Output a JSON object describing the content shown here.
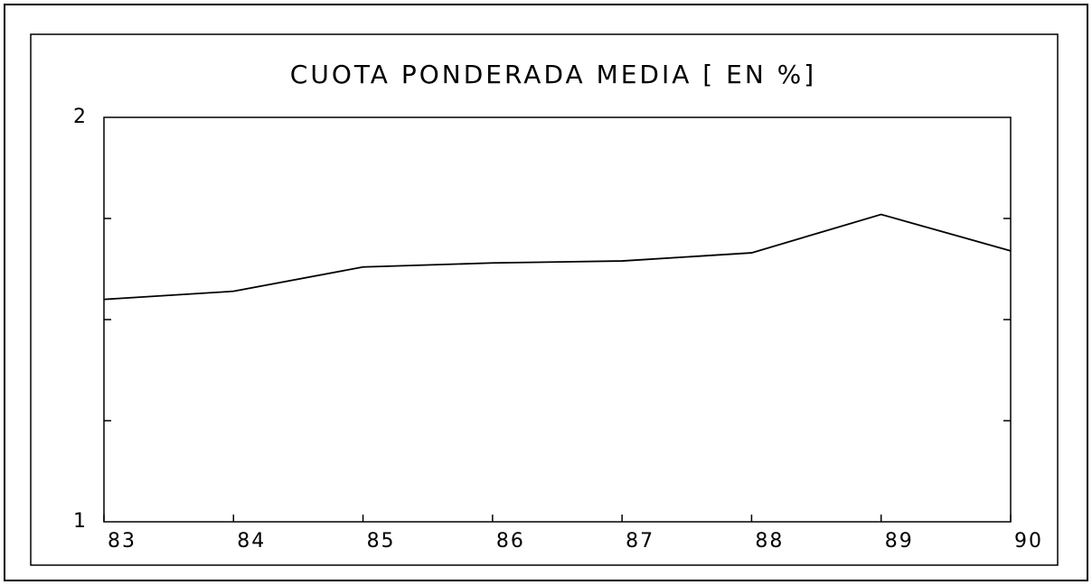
{
  "chart_data": {
    "type": "line",
    "title": "CUOTA PONDERADA MEDIA [ EN %]",
    "x": [
      83,
      84,
      85,
      86,
      87,
      88,
      89,
      90
    ],
    "values": [
      1.55,
      1.57,
      1.63,
      1.64,
      1.645,
      1.665,
      1.76,
      1.67
    ],
    "color": "#000000",
    "xlim": [
      83,
      90
    ],
    "xticks": [
      83,
      84,
      85,
      86,
      87,
      88,
      89,
      90
    ],
    "ylim": [
      1,
      2
    ],
    "yticks": [
      1,
      2
    ],
    "yminorticks": [
      1.25,
      1.5,
      1.75
    ],
    "grid": false
  }
}
